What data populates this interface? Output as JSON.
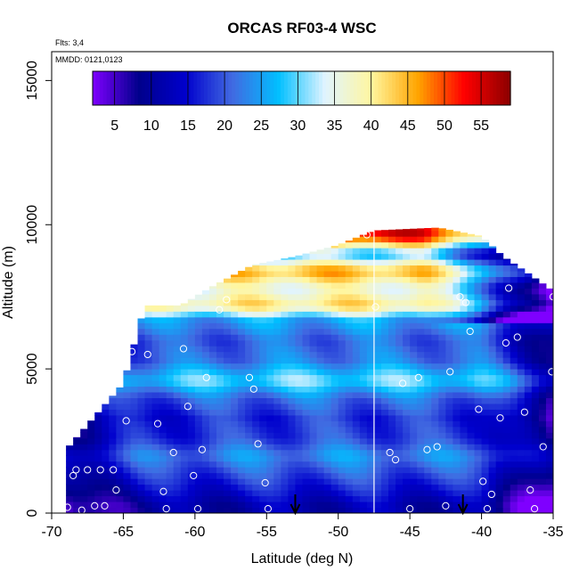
{
  "chart_data": {
    "type": "heatmap",
    "title": "ORCAS RF03-4 WSC",
    "flights_note": "Flts: 3,4",
    "dates_note": "MMDD: 0121,0123",
    "xlabel": "Latitude (deg N)",
    "ylabel": "Altitude (m)",
    "xlim": [
      -70,
      -35
    ],
    "ylim": [
      0,
      16000
    ],
    "x_ticks": [
      "-70",
      "-65",
      "-60",
      "-55",
      "-50",
      "-45",
      "-40",
      "-35"
    ],
    "y_ticks": [
      "0",
      "5000",
      "10000",
      "15000"
    ],
    "colorbar": {
      "ticks": [
        "5",
        "10",
        "15",
        "20",
        "25",
        "30",
        "35",
        "40",
        "45",
        "50",
        "55"
      ],
      "range": [
        2,
        59
      ],
      "colors": [
        "#7f00ff",
        "#00008b",
        "#0000cd",
        "#4169e1",
        "#00bfff",
        "#e0f4ff",
        "#fff6a0",
        "#ffa500",
        "#ff0000",
        "#8b0000"
      ]
    },
    "field_extent": {
      "lat_min": -69,
      "lat_max": -35,
      "top_altitude_profile": [
        [
          -69,
          2200
        ],
        [
          -65,
          4500
        ],
        [
          -63.5,
          7200
        ],
        [
          -61,
          7200
        ],
        [
          -59,
          7800
        ],
        [
          -56,
          8600
        ],
        [
          -53,
          8900
        ],
        [
          -50,
          9300
        ],
        [
          -47.5,
          9800
        ],
        [
          -43,
          9900
        ],
        [
          -40,
          9600
        ],
        [
          -38.5,
          8900
        ],
        [
          -37,
          8400
        ],
        [
          -35,
          7700
        ]
      ],
      "bands": [
        {
          "alt": 250,
          "value": 8
        },
        {
          "alt": 800,
          "value": 12
        },
        {
          "alt": 1400,
          "value": 16
        },
        {
          "alt": 2000,
          "value": 20
        },
        {
          "alt": 2600,
          "value": 15
        },
        {
          "alt": 3300,
          "value": 14
        },
        {
          "alt": 4000,
          "value": 18
        },
        {
          "alt": 4600,
          "value": 27
        },
        {
          "alt": 5300,
          "value": 19
        },
        {
          "alt": 6000,
          "value": 17
        },
        {
          "alt": 6700,
          "value": 22
        },
        {
          "alt": 7200,
          "value": 38
        },
        {
          "alt": 7800,
          "value": 32
        },
        {
          "alt": 8400,
          "value": 42
        },
        {
          "alt": 9000,
          "value": 24
        },
        {
          "alt": 9600,
          "value": 50
        }
      ]
    },
    "sample_points": [
      [
        -68.9,
        200
      ],
      [
        -68.5,
        1300
      ],
      [
        -68.3,
        1500
      ],
      [
        -67.9,
        100
      ],
      [
        -67.5,
        1500
      ],
      [
        -67.0,
        250
      ],
      [
        -66.6,
        1500
      ],
      [
        -66.3,
        250
      ],
      [
        -65.7,
        1500
      ],
      [
        -65.5,
        800
      ],
      [
        -64.8,
        3200
      ],
      [
        -64.4,
        5600
      ],
      [
        -63.8,
        7100
      ],
      [
        -63.3,
        5500
      ],
      [
        -62.6,
        3100
      ],
      [
        -62.2,
        750
      ],
      [
        -62.0,
        150
      ],
      [
        -61.5,
        2100
      ],
      [
        -60.8,
        5700
      ],
      [
        -60.5,
        3700
      ],
      [
        -60.1,
        1300
      ],
      [
        -59.8,
        150
      ],
      [
        -59.5,
        2200
      ],
      [
        -59.2,
        4700
      ],
      [
        -58.3,
        7050
      ],
      [
        -57.8,
        7400
      ],
      [
        -56.2,
        4700
      ],
      [
        -55.9,
        4300
      ],
      [
        -55.6,
        2400
      ],
      [
        -55.1,
        1050
      ],
      [
        -54.9,
        150
      ],
      [
        -48.0,
        9650
      ],
      [
        -47.4,
        7150
      ],
      [
        -46.4,
        2100
      ],
      [
        -46.0,
        1850
      ],
      [
        -45.5,
        4500
      ],
      [
        -45.0,
        150
      ],
      [
        -44.4,
        4700
      ],
      [
        -43.8,
        2200
      ],
      [
        -43.1,
        2300
      ],
      [
        -42.5,
        250
      ],
      [
        -42.2,
        4900
      ],
      [
        -41.5,
        7500
      ],
      [
        -41.1,
        7300
      ],
      [
        -40.8,
        6300
      ],
      [
        -40.2,
        3600
      ],
      [
        -39.9,
        1100
      ],
      [
        -39.6,
        150
      ],
      [
        -39.3,
        650
      ],
      [
        -38.7,
        3300
      ],
      [
        -38.3,
        5900
      ],
      [
        -38.1,
        7800
      ],
      [
        -37.5,
        6100
      ],
      [
        -37.0,
        3500
      ],
      [
        -36.6,
        800
      ],
      [
        -36.3,
        150
      ],
      [
        -35.7,
        2300
      ],
      [
        -35.1,
        4900
      ],
      [
        -35.0,
        7500
      ]
    ],
    "arrows_lat": [
      -53,
      -41.3
    ],
    "vertical_line_lat": -47.5
  }
}
